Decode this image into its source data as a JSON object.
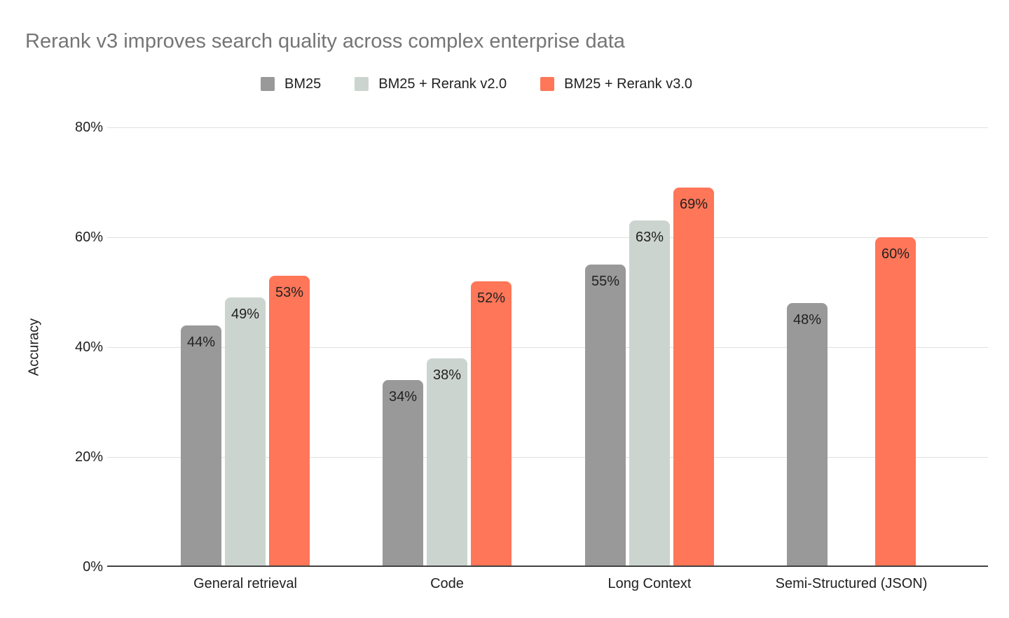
{
  "chart_data": {
    "type": "bar",
    "title": "Rerank v3 improves search quality across complex enterprise data",
    "ylabel": "Accuracy",
    "xlabel": "",
    "categories": [
      "General retrieval",
      "Code",
      "Long Context",
      "Semi-Structured (JSON)"
    ],
    "series": [
      {
        "name": "BM25",
        "color": "#999999",
        "values": [
          44,
          34,
          55,
          48
        ]
      },
      {
        "name": "BM25 + Rerank v2.0",
        "color": "#ccd4cf",
        "values": [
          49,
          38,
          63,
          null
        ]
      },
      {
        "name": "BM25 + Rerank v3.0",
        "color": "#ff7658",
        "values": [
          53,
          52,
          69,
          60
        ]
      }
    ],
    "value_suffix": "%",
    "ylim": [
      0,
      80
    ],
    "y_tick_step": 20,
    "y_tick_labels": [
      "0%",
      "20%",
      "40%",
      "60%",
      "80%"
    ],
    "grid": true,
    "legend_position": "top",
    "colors": {
      "title": "#757575",
      "grid": "#e0e0e0",
      "axis": "#424242",
      "tick_label": "#212121",
      "data_label": "#212121",
      "category_label": "#212121",
      "background": "#ffffff"
    }
  }
}
